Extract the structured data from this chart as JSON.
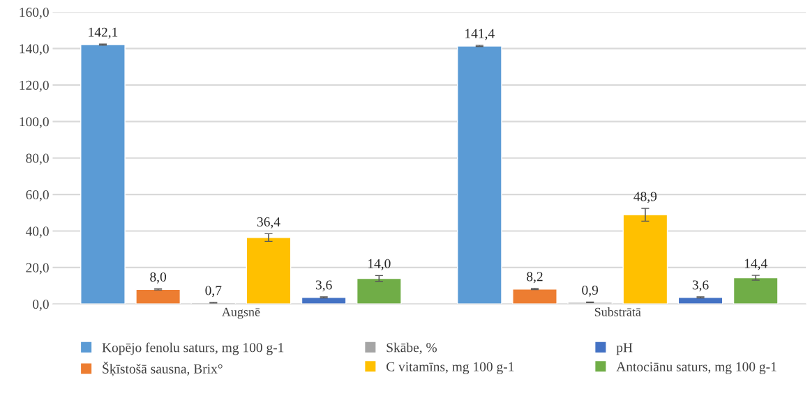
{
  "chart_data": {
    "type": "bar",
    "categories": [
      "Augsnē",
      "Substrātā"
    ],
    "series": [
      {
        "name": "Kopējo fenolu saturs, mg 100 g-1",
        "color": "#5b9bd5",
        "values": [
          142.1,
          141.4
        ],
        "errors": [
          0.3,
          0.3
        ]
      },
      {
        "name": "Šķīstošā sausna, Brix°",
        "color": "#ed7d31",
        "values": [
          8.0,
          8.2
        ],
        "errors": [
          0.3,
          0.3
        ]
      },
      {
        "name": "Skābe, %",
        "color": "#a5a5a5",
        "values": [
          0.7,
          0.9
        ],
        "errors": [
          0.2,
          0.2
        ]
      },
      {
        "name": "C vitamīns, mg 100 g-1",
        "color": "#ffc000",
        "values": [
          36.4,
          48.9
        ],
        "errors": [
          2.1,
          3.5
        ]
      },
      {
        "name": "pH",
        "color": "#4472c4",
        "values": [
          3.6,
          3.6
        ],
        "errors": [
          0.3,
          0.3
        ]
      },
      {
        "name": "Antociānu saturs, mg 100 g-1",
        "color": "#70ad47",
        "values": [
          14.0,
          14.4
        ],
        "errors": [
          1.6,
          1.3
        ]
      }
    ],
    "ylim": [
      0,
      160
    ],
    "yticks": [
      {
        "value": 0,
        "label": "0,0"
      },
      {
        "value": 20,
        "label": "20,0"
      },
      {
        "value": 40,
        "label": "40,0"
      },
      {
        "value": 60,
        "label": "60,0"
      },
      {
        "value": 80,
        "label": "80,0"
      },
      {
        "value": 100,
        "label": "100,0"
      },
      {
        "value": 120,
        "label": "120,0"
      },
      {
        "value": 140,
        "label": "140,0"
      },
      {
        "value": 160,
        "label": "160,0"
      }
    ],
    "value_labels": [
      [
        "142,1",
        "141,4"
      ],
      [
        "8,0",
        "8,2"
      ],
      [
        "0,7",
        "0,9"
      ],
      [
        "36,4",
        "48,9"
      ],
      [
        "3,6",
        "3,6"
      ],
      [
        "14,0",
        "14,4"
      ]
    ],
    "grid": "y",
    "legend": "bottom"
  }
}
